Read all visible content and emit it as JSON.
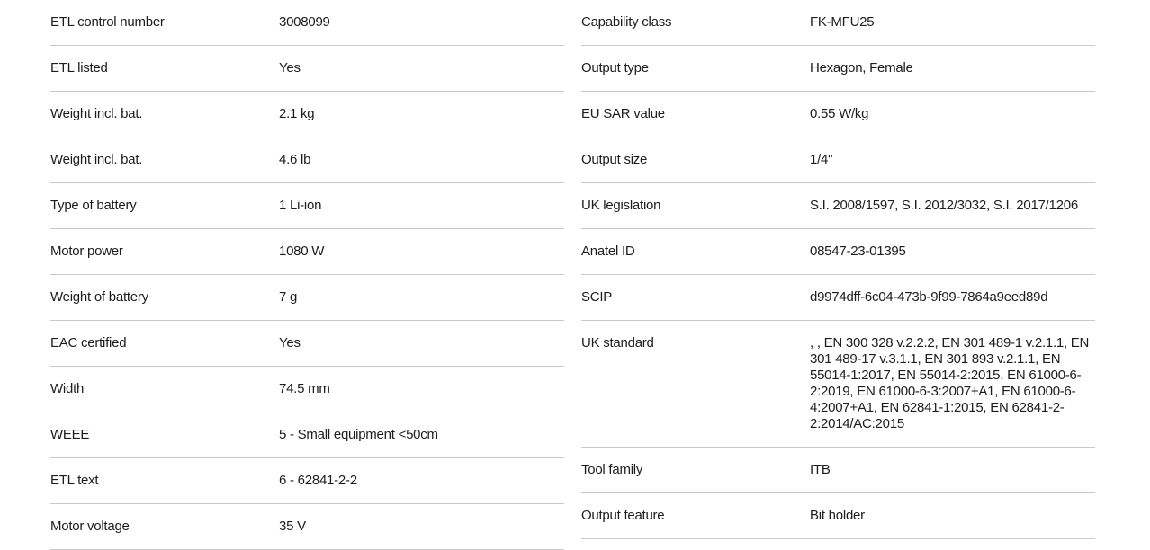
{
  "theme": {
    "background_color": "#ffffff",
    "text_color": "#1d1d1b",
    "divider_color": "#c9c9c9"
  },
  "spec_table": {
    "columns": [
      {
        "name": "left",
        "rows": [
          {
            "label": "ETL control number",
            "value": "3008099"
          },
          {
            "label": "ETL listed",
            "value": "Yes"
          },
          {
            "label": "Weight incl. bat.",
            "value": "2.1 kg"
          },
          {
            "label": "Weight incl. bat.",
            "value": "4.6 lb"
          },
          {
            "label": "Type of battery",
            "value": "1 Li-ion"
          },
          {
            "label": "Motor power",
            "value": "1080 W"
          },
          {
            "label": "Weight of battery",
            "value": "7 g"
          },
          {
            "label": "EAC certified",
            "value": "Yes"
          },
          {
            "label": "Width",
            "value": "74.5 mm"
          },
          {
            "label": "WEEE",
            "value": "5 - Small equipment <50cm"
          },
          {
            "label": "ETL text",
            "value": "6 - 62841-2-2"
          },
          {
            "label": "Motor voltage",
            "value": "35 V"
          }
        ]
      },
      {
        "name": "right",
        "rows": [
          {
            "label": "Capability class",
            "value": "FK-MFU25"
          },
          {
            "label": "Output type",
            "value": "Hexagon, Female"
          },
          {
            "label": "EU SAR value",
            "value": "0.55 W/kg"
          },
          {
            "label": "Output size",
            "value": "1/4\""
          },
          {
            "label": "UK legislation",
            "value": "S.I. 2008/1597, S.I. 2012/3032, S.I. 2017/1206"
          },
          {
            "label": "Anatel ID",
            "value": "08547-23-01395"
          },
          {
            "label": "SCIP",
            "value": "d9974dff-6c04-473b-9f99-7864a9eed89d"
          },
          {
            "label": "UK standard",
            "value": ", , EN 300 328 v.2.2.2, EN 301 489-1 v.2.1.1, EN 301 489-17 v.3.1.1, EN 301 893 v.2.1.1, EN 55014-1:2017, EN 55014-2:2015, EN 61000-6-2:2019, EN 61000-6-3:2007+A1, EN 61000-6-4:2007+A1, EN 62841-1:2015, EN 62841-2-2:2014/AC:2015"
          },
          {
            "label": "Tool family",
            "value": "ITB"
          },
          {
            "label": "Output feature",
            "value": "Bit holder"
          }
        ]
      }
    ]
  }
}
